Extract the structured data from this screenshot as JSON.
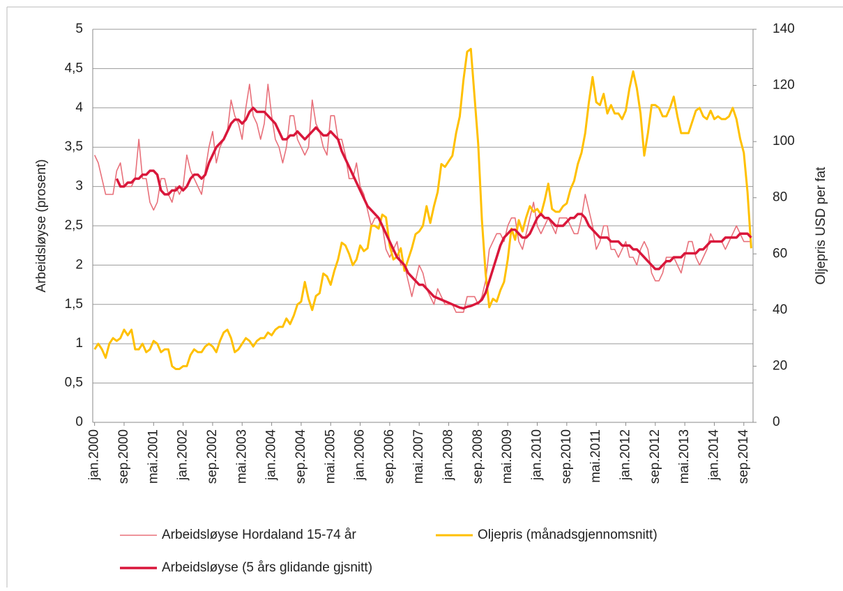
{
  "chart_data": {
    "type": "line",
    "y_label": "Arbeidsløyse (prosent)",
    "y2_label": "Oljepris USD per fat",
    "ylim": [
      0,
      5
    ],
    "yticks": [
      0,
      {
        "value": 0.5,
        "label": "0,5"
      },
      1,
      {
        "value": 1.5,
        "label": "1,5"
      },
      2,
      {
        "value": 2.5,
        "label": "2,5"
      },
      3,
      {
        "value": 3.5,
        "label": "3,5"
      },
      4,
      {
        "value": 4.5,
        "label": "4,5"
      },
      5
    ],
    "y2lim": [
      0,
      140
    ],
    "y2ticks": [
      0,
      20,
      40,
      60,
      80,
      100,
      120,
      140
    ],
    "grid": true,
    "legend": "bottom",
    "categories": [
      "jan.2000",
      null,
      null,
      null,
      null,
      null,
      null,
      null,
      "sep.2000",
      null,
      null,
      null,
      null,
      null,
      null,
      null,
      "mai.2001",
      null,
      null,
      null,
      null,
      null,
      null,
      null,
      "jan.2002",
      null,
      null,
      null,
      null,
      null,
      null,
      null,
      "sep.2002",
      null,
      null,
      null,
      null,
      null,
      null,
      null,
      "mai.2003",
      null,
      null,
      null,
      null,
      null,
      null,
      null,
      "jan.2004",
      null,
      null,
      null,
      null,
      null,
      null,
      null,
      "sep.2004",
      null,
      null,
      null,
      null,
      null,
      null,
      null,
      "mai.2005",
      null,
      null,
      null,
      null,
      null,
      null,
      null,
      "jan.2006",
      null,
      null,
      null,
      null,
      null,
      null,
      null,
      "sep.2006",
      null,
      null,
      null,
      null,
      null,
      null,
      null,
      "mai.2007",
      null,
      null,
      null,
      null,
      null,
      null,
      null,
      "jan.2008",
      null,
      null,
      null,
      null,
      null,
      null,
      null,
      "sep.2008",
      null,
      null,
      null,
      null,
      null,
      null,
      null,
      "mai.2009",
      null,
      null,
      null,
      null,
      null,
      null,
      null,
      "jan.2010",
      null,
      null,
      null,
      null,
      null,
      null,
      null,
      "sep.2010",
      null,
      null,
      null,
      null,
      null,
      null,
      null,
      "mai.2011",
      null,
      null,
      null,
      null,
      null,
      null,
      null,
      "jan.2012",
      null,
      null,
      null,
      null,
      null,
      null,
      null,
      "sep.2012",
      null,
      null,
      null,
      null,
      null,
      null,
      null,
      "mai.2013",
      null,
      null,
      null,
      null,
      null,
      null,
      null,
      "jan.2014",
      null,
      null,
      null,
      null,
      null,
      null,
      null,
      "sep.2014",
      null,
      null
    ],
    "series": [
      {
        "name": "Arbeidsløyse Hordaland 15-74 år",
        "color": "#e8707a",
        "values": [
          3.4,
          3.3,
          3.1,
          2.9,
          2.9,
          2.9,
          3.2,
          3.3,
          3.0,
          3.0,
          3.0,
          3.1,
          3.6,
          3.1,
          3.1,
          2.8,
          2.7,
          2.8,
          3.1,
          3.1,
          2.9,
          2.8,
          3.0,
          2.9,
          3.0,
          3.4,
          3.2,
          3.1,
          3.0,
          2.9,
          3.2,
          3.5,
          3.7,
          3.3,
          3.5,
          3.6,
          3.7,
          4.1,
          3.9,
          3.8,
          3.6,
          4.0,
          4.3,
          3.9,
          3.8,
          3.6,
          3.8,
          4.3,
          3.9,
          3.6,
          3.5,
          3.3,
          3.5,
          3.9,
          3.9,
          3.6,
          3.5,
          3.4,
          3.5,
          4.1,
          3.8,
          3.7,
          3.5,
          3.4,
          3.9,
          3.9,
          3.6,
          3.6,
          3.4,
          3.1,
          3.1,
          3.3,
          3.0,
          2.9,
          2.7,
          2.5,
          2.6,
          2.6,
          2.5,
          2.2,
          2.1,
          2.2,
          2.3,
          2.0,
          2.0,
          1.8,
          1.6,
          1.8,
          2.0,
          1.9,
          1.7,
          1.6,
          1.5,
          1.7,
          1.6,
          1.5,
          1.5,
          1.5,
          1.4,
          1.4,
          1.4,
          1.6,
          1.6,
          1.6,
          1.5,
          1.6,
          1.8,
          2.2,
          2.3,
          2.4,
          2.4,
          2.3,
          2.5,
          2.6,
          2.6,
          2.3,
          2.2,
          2.4,
          2.6,
          2.8,
          2.5,
          2.4,
          2.5,
          2.6,
          2.5,
          2.4,
          2.6,
          2.6,
          2.6,
          2.5,
          2.4,
          2.4,
          2.6,
          2.9,
          2.7,
          2.5,
          2.2,
          2.3,
          2.5,
          2.5,
          2.2,
          2.2,
          2.1,
          2.2,
          2.3,
          2.1,
          2.1,
          2.0,
          2.2,
          2.3,
          2.2,
          1.9,
          1.8,
          1.8,
          1.9,
          2.1,
          2.1,
          2.1,
          2.0,
          1.9,
          2.1,
          2.3,
          2.3,
          2.1,
          2.0,
          2.1,
          2.2,
          2.4,
          2.3,
          2.3,
          2.3,
          2.2,
          2.3,
          2.4,
          2.5,
          2.4,
          2.3,
          2.3,
          2.3
        ]
      },
      {
        "name": "Oljepris (månadsgjennomsnitt)",
        "color": "#ffc000",
        "axis": "y2",
        "values": [
          26,
          28,
          26,
          23,
          28,
          30,
          29,
          30,
          33,
          31,
          33,
          26,
          26,
          28,
          25,
          26,
          29,
          28,
          25,
          26,
          26,
          20,
          19,
          19,
          20,
          20,
          24,
          26,
          25,
          25,
          27,
          28,
          27,
          25,
          29,
          32,
          33,
          30,
          25,
          26,
          28,
          30,
          29,
          27,
          29,
          30,
          30,
          32,
          31,
          33,
          34,
          34,
          37,
          35,
          38,
          42,
          43,
          50,
          44,
          40,
          45,
          46,
          53,
          52,
          49,
          54,
          58,
          64,
          63,
          60,
          56,
          58,
          63,
          61,
          62,
          70,
          70,
          69,
          74,
          73,
          63,
          58,
          59,
          62,
          54,
          58,
          62,
          67,
          68,
          70,
          77,
          71,
          77,
          82,
          92,
          91,
          93,
          95,
          103,
          109,
          122,
          132,
          133,
          116,
          99,
          72,
          53,
          41,
          44,
          43,
          47,
          50,
          58,
          69,
          65,
          72,
          68,
          73,
          77,
          75,
          76,
          74,
          79,
          85,
          76,
          75,
          75,
          77,
          78,
          83,
          86,
          92,
          96,
          103,
          114,
          123,
          114,
          113,
          117,
          110,
          113,
          110,
          110,
          108,
          111,
          119,
          125,
          119,
          110,
          95,
          103,
          113,
          113,
          112,
          109,
          109,
          112,
          116,
          109,
          103,
          103,
          103,
          107,
          111,
          112,
          109,
          108,
          111,
          108,
          109,
          108,
          108,
          109,
          112,
          108,
          101,
          96,
          82,
          62
        ]
      },
      {
        "name": "Arbeidsløyse (5 års glidande gjsnitt)",
        "color": "#d9173b",
        "values": [
          null,
          null,
          null,
          null,
          null,
          null,
          3.1,
          3.0,
          3.0,
          3.05,
          3.05,
          3.1,
          3.1,
          3.15,
          3.15,
          3.2,
          3.2,
          3.15,
          2.95,
          2.9,
          2.9,
          2.95,
          2.95,
          3.0,
          2.95,
          3.0,
          3.1,
          3.15,
          3.15,
          3.1,
          3.15,
          3.3,
          3.4,
          3.5,
          3.55,
          3.6,
          3.7,
          3.8,
          3.85,
          3.85,
          3.8,
          3.85,
          3.95,
          4.0,
          3.95,
          3.95,
          3.95,
          3.9,
          3.85,
          3.8,
          3.7,
          3.6,
          3.6,
          3.65,
          3.65,
          3.7,
          3.65,
          3.6,
          3.65,
          3.7,
          3.75,
          3.7,
          3.65,
          3.65,
          3.7,
          3.65,
          3.6,
          3.45,
          3.35,
          3.25,
          3.15,
          3.05,
          2.95,
          2.85,
          2.75,
          2.7,
          2.65,
          2.6,
          2.5,
          2.4,
          2.3,
          2.2,
          2.1,
          2.05,
          2.0,
          1.9,
          1.85,
          1.8,
          1.75,
          1.75,
          1.7,
          1.65,
          1.6,
          1.58,
          1.56,
          1.54,
          1.52,
          1.5,
          1.48,
          1.46,
          1.45,
          1.47,
          1.48,
          1.5,
          1.52,
          1.56,
          1.65,
          1.8,
          1.95,
          2.1,
          2.25,
          2.35,
          2.4,
          2.45,
          2.45,
          2.4,
          2.35,
          2.35,
          2.4,
          2.5,
          2.6,
          2.65,
          2.6,
          2.6,
          2.55,
          2.5,
          2.5,
          2.5,
          2.55,
          2.6,
          2.6,
          2.65,
          2.65,
          2.6,
          2.5,
          2.45,
          2.4,
          2.35,
          2.35,
          2.35,
          2.3,
          2.3,
          2.3,
          2.25,
          2.25,
          2.25,
          2.2,
          2.2,
          2.15,
          2.1,
          2.05,
          2.0,
          1.95,
          1.95,
          2.0,
          2.05,
          2.05,
          2.1,
          2.1,
          2.1,
          2.15,
          2.15,
          2.15,
          2.15,
          2.2,
          2.2,
          2.25,
          2.3,
          2.3,
          2.3,
          2.3,
          2.35,
          2.35,
          2.35,
          2.35,
          2.4,
          2.4,
          2.4,
          2.35
        ]
      }
    ]
  }
}
